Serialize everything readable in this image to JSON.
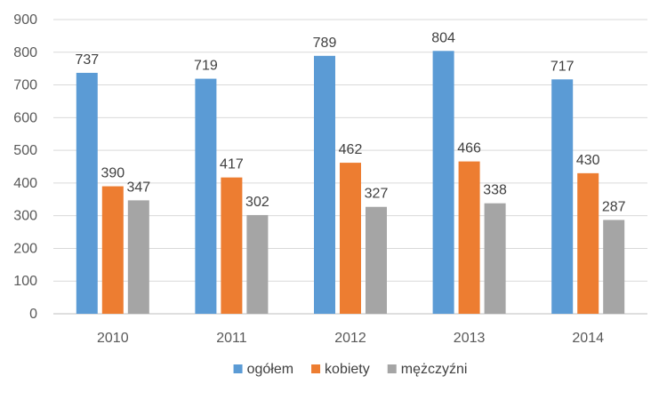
{
  "chart_data": {
    "type": "bar",
    "title": "",
    "xlabel": "",
    "ylabel": "",
    "categories": [
      "2010",
      "2011",
      "2012",
      "2013",
      "2014"
    ],
    "ylim": [
      0,
      900
    ],
    "yticks": [
      0,
      100,
      200,
      300,
      400,
      500,
      600,
      700,
      800,
      900
    ],
    "grid": true,
    "legend_position": "bottom",
    "series": [
      {
        "name": "ogółem",
        "color": "#5B9BD5",
        "values": [
          737,
          719,
          789,
          804,
          717
        ]
      },
      {
        "name": "kobiety",
        "color": "#ED7D31",
        "values": [
          390,
          417,
          462,
          466,
          430
        ]
      },
      {
        "name": "mężczyźni",
        "color": "#A5A5A5",
        "values": [
          347,
          302,
          327,
          338,
          287
        ]
      }
    ]
  }
}
